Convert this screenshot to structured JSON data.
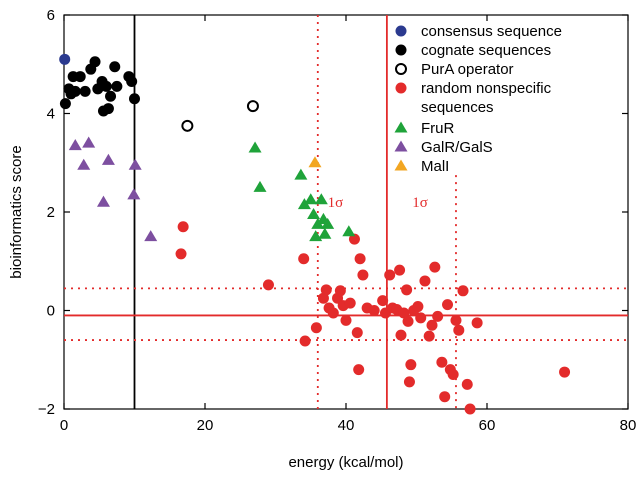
{
  "chart_data": {
    "type": "scatter",
    "xlabel": "energy (kcal/mol)",
    "ylabel": "bioinformatics score",
    "xlim": [
      0,
      80
    ],
    "ylim": [
      -2,
      6
    ],
    "x_ticks": [
      "0",
      "20",
      "40",
      "60",
      "80"
    ],
    "y_ticks": [
      "−2",
      "0",
      "2",
      "4",
      "6"
    ],
    "grid": false,
    "legend_position": "top-right",
    "colors": {
      "consensus": "#2b3a8f",
      "cognate": "#000000",
      "operator": "#000000",
      "random": "#e32b2b",
      "fruR": "#1fa33a",
      "galR": "#7d4fa0",
      "malI": "#f2a622",
      "ref_line": "#e32b2b"
    },
    "series": [
      {
        "name": "consensus sequence",
        "marker": "filled-circle",
        "color": "#2b3a8f",
        "points": [
          [
            0.1,
            5.1
          ]
        ]
      },
      {
        "name": "cognate sequences",
        "marker": "filled-circle",
        "color": "#000000",
        "points": [
          [
            0.2,
            4.2
          ],
          [
            0.7,
            4.5
          ],
          [
            1.0,
            4.4
          ],
          [
            1.3,
            4.75
          ],
          [
            1.6,
            4.45
          ],
          [
            2.3,
            4.75
          ],
          [
            3.0,
            4.45
          ],
          [
            3.8,
            4.9
          ],
          [
            4.4,
            5.05
          ],
          [
            4.8,
            4.5
          ],
          [
            5.4,
            4.65
          ],
          [
            5.6,
            4.05
          ],
          [
            6.0,
            4.55
          ],
          [
            6.3,
            4.1
          ],
          [
            6.6,
            4.35
          ],
          [
            7.2,
            4.95
          ],
          [
            7.5,
            4.55
          ],
          [
            9.2,
            4.75
          ],
          [
            9.6,
            4.65
          ],
          [
            10.0,
            4.3
          ]
        ]
      },
      {
        "name": "PurA operator",
        "marker": "open-circle",
        "color": "#000000",
        "points": [
          [
            17.5,
            3.75
          ],
          [
            26.8,
            4.15
          ]
        ]
      },
      {
        "name": "random nonspecific sequences",
        "marker": "filled-circle",
        "color": "#e32b2b",
        "points": [
          [
            16.6,
            1.15
          ],
          [
            16.9,
            1.7
          ],
          [
            29.0,
            0.52
          ],
          [
            34.0,
            1.05
          ],
          [
            34.2,
            -0.62
          ],
          [
            35.8,
            -0.35
          ],
          [
            36.8,
            0.25
          ],
          [
            37.2,
            0.42
          ],
          [
            37.6,
            0.05
          ],
          [
            38.2,
            -0.05
          ],
          [
            38.8,
            0.25
          ],
          [
            39.2,
            0.4
          ],
          [
            39.6,
            0.1
          ],
          [
            40.0,
            -0.2
          ],
          [
            40.6,
            0.15
          ],
          [
            41.2,
            1.45
          ],
          [
            41.6,
            -0.45
          ],
          [
            41.8,
            -1.2
          ],
          [
            42.0,
            1.05
          ],
          [
            42.4,
            0.72
          ],
          [
            43.0,
            0.05
          ],
          [
            44.0,
            0.0
          ],
          [
            45.2,
            0.2
          ],
          [
            45.6,
            -0.05
          ],
          [
            46.2,
            0.72
          ],
          [
            46.6,
            0.05
          ],
          [
            47.2,
            0.02
          ],
          [
            47.6,
            0.82
          ],
          [
            47.8,
            -0.5
          ],
          [
            48.2,
            -0.05
          ],
          [
            48.6,
            0.42
          ],
          [
            48.8,
            -0.22
          ],
          [
            49.0,
            -1.45
          ],
          [
            49.2,
            -1.1
          ],
          [
            49.6,
            0.0
          ],
          [
            50.2,
            0.08
          ],
          [
            50.6,
            -0.15
          ],
          [
            51.2,
            0.6
          ],
          [
            51.8,
            -0.52
          ],
          [
            52.2,
            -0.3
          ],
          [
            52.6,
            0.88
          ],
          [
            53.0,
            -0.12
          ],
          [
            53.6,
            -1.05
          ],
          [
            54.0,
            -1.75
          ],
          [
            54.4,
            0.12
          ],
          [
            54.8,
            -1.2
          ],
          [
            55.2,
            -1.3
          ],
          [
            55.6,
            -0.2
          ],
          [
            56.0,
            -0.4
          ],
          [
            56.6,
            0.4
          ],
          [
            57.2,
            -1.5
          ],
          [
            57.6,
            -2.0
          ],
          [
            58.6,
            -0.25
          ],
          [
            71.0,
            -1.25
          ]
        ]
      },
      {
        "name": "FruR",
        "marker": "filled-triangle",
        "color": "#1fa33a",
        "points": [
          [
            27.1,
            3.3
          ],
          [
            27.8,
            2.5
          ],
          [
            33.6,
            2.75
          ],
          [
            34.1,
            2.15
          ],
          [
            35.0,
            2.25
          ],
          [
            35.4,
            1.95
          ],
          [
            35.7,
            1.5
          ],
          [
            36.0,
            1.75
          ],
          [
            36.5,
            2.25
          ],
          [
            36.8,
            1.85
          ],
          [
            37.0,
            1.55
          ],
          [
            37.4,
            1.75
          ],
          [
            40.4,
            1.6
          ]
        ]
      },
      {
        "name": "GalR/GalS",
        "marker": "filled-triangle",
        "color": "#7d4fa0",
        "points": [
          [
            1.6,
            3.35
          ],
          [
            2.8,
            2.95
          ],
          [
            3.5,
            3.4
          ],
          [
            5.6,
            2.2
          ],
          [
            6.3,
            3.05
          ],
          [
            9.9,
            2.35
          ],
          [
            10.1,
            2.95
          ],
          [
            12.3,
            1.5
          ]
        ]
      },
      {
        "name": "MalI",
        "marker": "filled-triangle",
        "color": "#f2a622",
        "points": [
          [
            35.6,
            3.0
          ]
        ]
      }
    ],
    "reference_lines": {
      "vertical_solid": [
        10,
        45.8
      ],
      "vertical_dotted": [
        36,
        55.6
      ],
      "horizontal_solid": [
        -0.1
      ],
      "horizontal_dotted": [
        0.45,
        -0.6
      ]
    },
    "annotations": [
      {
        "text": "1σ",
        "x": 38.5,
        "y": 2.2
      },
      {
        "text": "1σ",
        "x": 50.5,
        "y": 2.2
      }
    ]
  }
}
